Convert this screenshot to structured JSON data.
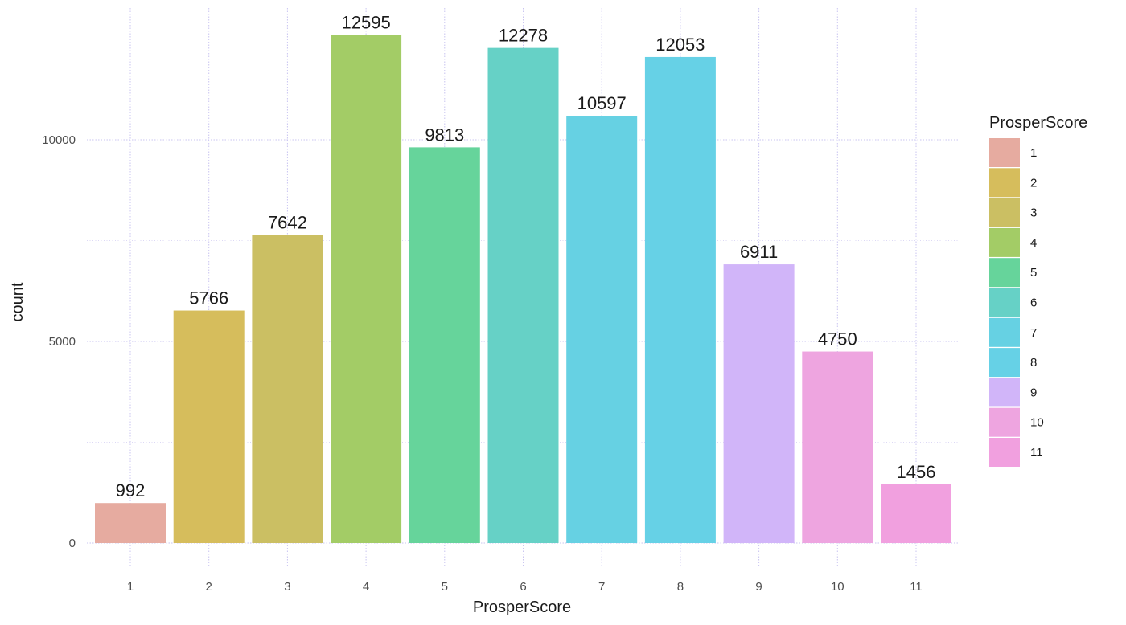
{
  "chart_data": {
    "type": "bar",
    "xlabel": "ProsperScore",
    "ylabel": "count",
    "categories": [
      "1",
      "2",
      "3",
      "4",
      "5",
      "6",
      "7",
      "8",
      "9",
      "10",
      "11"
    ],
    "values": [
      992,
      5766,
      7642,
      12595,
      9813,
      12278,
      10597,
      12053,
      6911,
      4750,
      1456
    ],
    "colors": [
      "#e6aba0",
      "#d6bd5c",
      "#cbbf63",
      "#a3cc66",
      "#66d49b",
      "#66d1c6",
      "#66d1e3",
      "#66d1e6",
      "#d1b5f9",
      "#eea5e0",
      "#f1a0df"
    ],
    "ylim": [
      0,
      13400
    ],
    "yticks": [
      0,
      5000,
      10000
    ],
    "ytick_labels": [
      "0",
      "5000",
      "10000"
    ],
    "grid": true,
    "legend": {
      "title": "ProsperScore",
      "placement": "right",
      "labels": [
        "1",
        "2",
        "3",
        "4",
        "5",
        "6",
        "7",
        "8",
        "9",
        "10",
        "11"
      ]
    }
  }
}
